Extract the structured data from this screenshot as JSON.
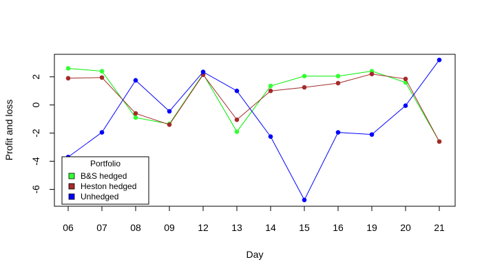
{
  "chart_data": {
    "type": "line",
    "title": "",
    "xlabel": "Day",
    "ylabel": "Profit and loss",
    "categories": [
      "06",
      "07",
      "08",
      "09",
      "12",
      "13",
      "14",
      "15",
      "16",
      "19",
      "20",
      "21"
    ],
    "yticks": [
      -6,
      -4,
      -2,
      0,
      2
    ],
    "ylim": [
      -7.2,
      3.6
    ],
    "grid": false,
    "legend": {
      "title": "Portfolio",
      "position": "bottom-left"
    },
    "series": [
      {
        "name": "B&S hedged",
        "color": "#00ee00",
        "marker_color": "#33ff33",
        "values": [
          2.6,
          2.4,
          -0.9,
          -1.35,
          2.2,
          -1.9,
          1.35,
          2.05,
          2.05,
          2.4,
          1.6,
          -2.6
        ]
      },
      {
        "name": "Heston hedged",
        "color": "#a52a2a",
        "marker_color": "#a52a2a",
        "values": [
          1.9,
          1.95,
          -0.6,
          -1.4,
          2.15,
          -1.05,
          1.0,
          1.25,
          1.55,
          2.2,
          1.85,
          -2.6
        ]
      },
      {
        "name": "Unhedged",
        "color": "#0000ff",
        "marker_color": "#0000ff",
        "values": [
          -3.7,
          -1.95,
          1.75,
          -0.45,
          2.35,
          1.0,
          -2.25,
          -6.75,
          -1.95,
          -2.1,
          -0.05,
          3.2
        ]
      }
    ]
  }
}
